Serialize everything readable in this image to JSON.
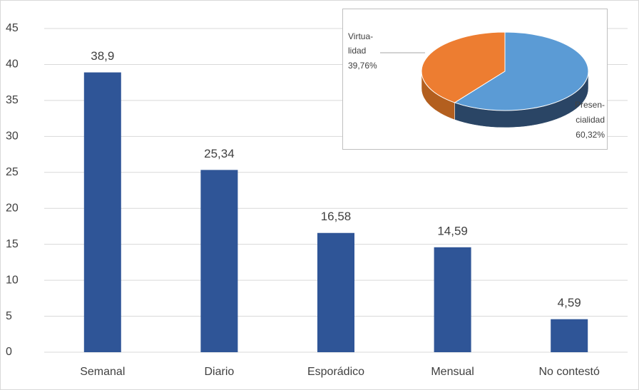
{
  "chart_data": [
    {
      "type": "bar",
      "categories": [
        "Semanal",
        "Diario",
        "Esporádico",
        "Mensual",
        "No contestó"
      ],
      "values": [
        38.9,
        25.34,
        16.58,
        14.59,
        4.59
      ],
      "value_labels": [
        "38,9",
        "25,34",
        "16,58",
        "14,59",
        "4,59"
      ],
      "color": "#2f5597",
      "ylim": [
        0,
        45
      ],
      "yticks": [
        0,
        5,
        10,
        15,
        20,
        25,
        30,
        35,
        40,
        45
      ],
      "grid": true
    },
    {
      "type": "pie",
      "categories": [
        [
          "Virtua-",
          "lidad"
        ],
        [
          "Presen-",
          "cialidad"
        ]
      ],
      "values": [
        39.76,
        60.32
      ],
      "value_labels": [
        "39,76%",
        "60,32%"
      ],
      "colors": [
        "#ed7d31",
        "#5b9bd5"
      ]
    }
  ]
}
